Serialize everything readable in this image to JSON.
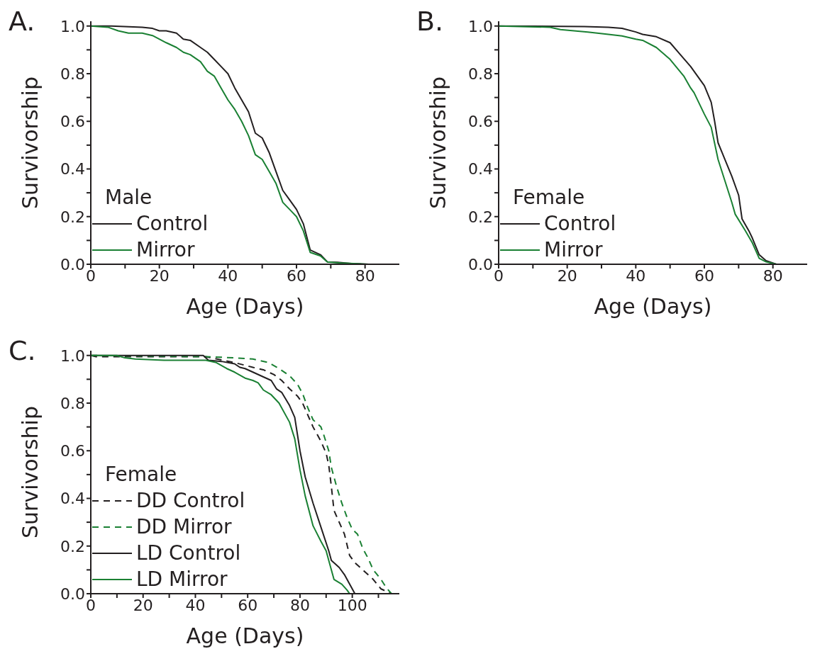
{
  "chart_data": [
    {
      "type": "line",
      "title": "A.",
      "xlabel": "Age (Days)",
      "ylabel": "Survivorship",
      "legend_title": "Male",
      "legend": "bottom left",
      "xlim": [
        0,
        90
      ],
      "ylim": [
        0,
        1.02
      ],
      "xticks": [
        0,
        {
          "value": 10,
          "label": null
        },
        20,
        {
          "value": 30,
          "label": null
        },
        40,
        {
          "value": 50,
          "label": null
        },
        60,
        {
          "value": 70,
          "label": null
        },
        80
      ],
      "yticks": [
        {
          "value": 0,
          "label": "0.0"
        },
        {
          "value": 0.1,
          "label": null
        },
        {
          "value": 0.2,
          "label": "0.2"
        },
        {
          "value": 0.3,
          "label": null
        },
        {
          "value": 0.4,
          "label": "0.4"
        },
        {
          "value": 0.5,
          "label": null
        },
        {
          "value": 0.6,
          "label": "0.6"
        },
        {
          "value": 0.7,
          "label": null
        },
        {
          "value": 0.8,
          "label": "0.8"
        },
        {
          "value": 0.9,
          "label": null
        },
        {
          "value": 1,
          "label": "1.0"
        }
      ],
      "series": [
        {
          "name": "Control",
          "color": "#231f20",
          "line_style": "solid",
          "x": [
            0,
            6,
            15,
            18,
            20,
            22,
            25,
            27,
            29,
            32,
            34,
            36,
            38,
            40,
            42,
            44,
            46,
            48,
            50,
            52,
            54,
            56,
            58,
            60,
            62,
            64,
            67,
            69,
            72,
            76,
            81
          ],
          "values": [
            1,
            1,
            0.995,
            0.99,
            0.98,
            0.98,
            0.97,
            0.945,
            0.94,
            0.91,
            0.89,
            0.86,
            0.83,
            0.8,
            0.74,
            0.69,
            0.64,
            0.55,
            0.53,
            0.47,
            0.39,
            0.31,
            0.27,
            0.23,
            0.17,
            0.06,
            0.04,
            0.01,
            0.008,
            0.003,
            0
          ]
        },
        {
          "name": "Mirror",
          "color": "#1a8033",
          "line_style": "solid",
          "x": [
            0,
            5,
            8,
            11,
            15,
            18,
            22,
            25,
            27,
            29,
            32,
            34,
            36,
            38,
            40,
            42,
            44,
            46,
            48,
            50,
            52,
            54,
            56,
            58,
            60,
            62,
            64,
            67,
            69,
            73,
            81
          ],
          "values": [
            1,
            0.995,
            0.98,
            0.97,
            0.97,
            0.96,
            0.93,
            0.91,
            0.89,
            0.88,
            0.85,
            0.81,
            0.79,
            0.74,
            0.69,
            0.65,
            0.6,
            0.54,
            0.46,
            0.44,
            0.39,
            0.34,
            0.26,
            0.23,
            0.2,
            0.14,
            0.05,
            0.035,
            0.01,
            0.005,
            0
          ]
        }
      ]
    },
    {
      "type": "line",
      "title": "B.",
      "xlabel": "Age (Days)",
      "ylabel": "Survivorship",
      "legend_title": "Female",
      "legend": "bottom left",
      "xlim": [
        0,
        90
      ],
      "ylim": [
        0,
        1.02
      ],
      "xticks": [
        0,
        {
          "value": 10,
          "label": null
        },
        20,
        {
          "value": 30,
          "label": null
        },
        40,
        {
          "value": 50,
          "label": null
        },
        60,
        {
          "value": 70,
          "label": null
        },
        80
      ],
      "yticks": [
        {
          "value": 0,
          "label": "0.0"
        },
        {
          "value": 0.1,
          "label": null
        },
        {
          "value": 0.2,
          "label": "0.2"
        },
        {
          "value": 0.3,
          "label": null
        },
        {
          "value": 0.4,
          "label": "0.4"
        },
        {
          "value": 0.5,
          "label": null
        },
        {
          "value": 0.6,
          "label": "0.6"
        },
        {
          "value": 0.7,
          "label": null
        },
        {
          "value": 0.8,
          "label": "0.8"
        },
        {
          "value": 0.9,
          "label": null
        },
        {
          "value": 1,
          "label": "1.0"
        }
      ],
      "series": [
        {
          "name": "Control",
          "color": "#231f20",
          "line_style": "solid",
          "x": [
            0,
            25,
            32,
            36,
            40,
            42,
            46,
            50,
            53,
            56,
            58,
            60,
            62,
            63,
            64,
            66,
            68,
            70,
            71,
            73,
            74,
            76,
            78,
            81
          ],
          "values": [
            1,
            0.998,
            0.995,
            0.99,
            0.975,
            0.965,
            0.955,
            0.93,
            0.88,
            0.83,
            0.79,
            0.75,
            0.68,
            0.6,
            0.51,
            0.44,
            0.37,
            0.29,
            0.19,
            0.14,
            0.11,
            0.04,
            0.015,
            0
          ]
        },
        {
          "name": "Mirror",
          "color": "#1a8033",
          "line_style": "solid",
          "x": [
            0,
            15,
            18,
            26,
            32,
            36,
            40,
            42,
            46,
            50,
            54,
            56,
            57,
            60,
            62,
            64,
            66,
            68,
            69,
            72,
            74,
            76,
            78,
            81
          ],
          "values": [
            1,
            0.995,
            0.985,
            0.975,
            0.965,
            0.958,
            0.945,
            0.94,
            0.91,
            0.86,
            0.79,
            0.74,
            0.72,
            0.63,
            0.575,
            0.44,
            0.35,
            0.26,
            0.21,
            0.14,
            0.09,
            0.025,
            0.01,
            0
          ]
        }
      ]
    },
    {
      "type": "line",
      "title": "C.",
      "xlabel": "Age (Days)",
      "ylabel": "Survivorship",
      "legend_title": "Female",
      "legend": "bottom left",
      "xlim": [
        0,
        118
      ],
      "ylim": [
        0,
        1.02
      ],
      "xticks": [
        0,
        {
          "value": 10,
          "label": null
        },
        20,
        {
          "value": 30,
          "label": null
        },
        40,
        {
          "value": 50,
          "label": null
        },
        60,
        {
          "value": 70,
          "label": null
        },
        80,
        {
          "value": 90,
          "label": null
        },
        100,
        {
          "value": 110,
          "label": null
        }
      ],
      "yticks": [
        {
          "value": 0,
          "label": "0.0"
        },
        {
          "value": 0.1,
          "label": null
        },
        {
          "value": 0.2,
          "label": "0.2"
        },
        {
          "value": 0.3,
          "label": null
        },
        {
          "value": 0.4,
          "label": "0.4"
        },
        {
          "value": 0.5,
          "label": null
        },
        {
          "value": 0.6,
          "label": "0.6"
        },
        {
          "value": 0.7,
          "label": null
        },
        {
          "value": 0.8,
          "label": "0.8"
        },
        {
          "value": 0.9,
          "label": null
        },
        {
          "value": 1,
          "label": "1.0"
        }
      ],
      "series": [
        {
          "name": "DD Control",
          "color": "#231f20",
          "line_style": "dashed",
          "x": [
            0,
            2,
            44,
            55,
            62,
            66,
            70,
            73,
            76,
            79,
            81,
            83,
            85,
            88,
            90,
            91,
            92,
            93,
            95,
            97,
            99,
            101,
            104,
            108,
            111,
            115
          ],
          "values": [
            1,
            0.995,
            0.995,
            0.97,
            0.95,
            0.94,
            0.92,
            0.895,
            0.86,
            0.83,
            0.8,
            0.75,
            0.7,
            0.64,
            0.59,
            0.54,
            0.45,
            0.35,
            0.3,
            0.25,
            0.16,
            0.13,
            0.1,
            0.06,
            0.02,
            0
          ]
        },
        {
          "name": "DD Mirror",
          "color": "#1a8033",
          "line_style": "dashed",
          "x": [
            0,
            44,
            55,
            62,
            68,
            72,
            76,
            79,
            81,
            83,
            85,
            88,
            89,
            91,
            92,
            94,
            96,
            98,
            100,
            102,
            104,
            106,
            108,
            111,
            113,
            115
          ],
          "values": [
            1,
            0.995,
            0.99,
            0.985,
            0.97,
            0.945,
            0.915,
            0.88,
            0.84,
            0.78,
            0.73,
            0.7,
            0.67,
            0.6,
            0.53,
            0.45,
            0.38,
            0.32,
            0.27,
            0.25,
            0.19,
            0.15,
            0.1,
            0.06,
            0.025,
            0
          ]
        },
        {
          "name": "LD Control",
          "color": "#231f20",
          "line_style": "solid",
          "x": [
            0,
            43,
            45,
            50,
            55,
            57,
            59,
            62,
            66,
            69,
            71,
            73,
            76,
            78,
            80,
            82,
            85,
            88,
            91,
            92,
            95,
            97,
            99,
            101
          ],
          "values": [
            1,
            1,
            0.98,
            0.975,
            0.965,
            0.95,
            0.945,
            0.93,
            0.91,
            0.895,
            0.86,
            0.845,
            0.79,
            0.74,
            0.6,
            0.49,
            0.38,
            0.28,
            0.18,
            0.14,
            0.11,
            0.08,
            0.04,
            0
          ]
        },
        {
          "name": "LD Mirror",
          "color": "#1a8033",
          "line_style": "solid",
          "x": [
            0,
            10,
            13,
            17,
            28,
            44,
            48,
            52,
            55,
            59,
            62,
            64,
            66,
            69,
            72,
            76,
            78,
            80,
            82,
            85,
            88,
            90,
            91,
            93,
            96,
            98,
            99
          ],
          "values": [
            1,
            1,
            0.99,
            0.985,
            0.98,
            0.98,
            0.97,
            0.945,
            0.93,
            0.905,
            0.895,
            0.885,
            0.855,
            0.835,
            0.8,
            0.72,
            0.65,
            0.52,
            0.41,
            0.285,
            0.22,
            0.18,
            0.14,
            0.06,
            0.04,
            0.015,
            0
          ]
        }
      ]
    }
  ]
}
